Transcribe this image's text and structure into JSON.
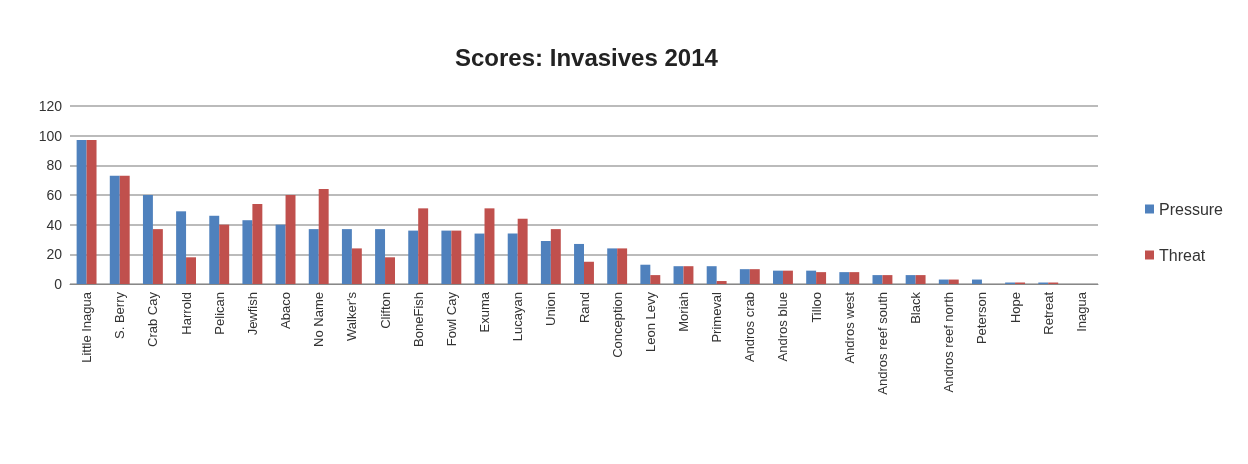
{
  "chart_data": {
    "type": "bar",
    "title": "Scores: Invasives 2014",
    "categories": [
      "Little Inagua",
      "S. Berry",
      "Crab Cay",
      "Harrold",
      "Pelican",
      "Jewfish",
      "Abaco",
      "No Name",
      "Walker's",
      "Clifton",
      "BoneFish",
      "Fowl Cay",
      "Exuma",
      "Lucayan",
      "Union",
      "Rand",
      "Conception",
      "Leon Levy",
      "Moriah",
      "Primeval",
      "Andros crab",
      "Andros blue",
      "Tilloo",
      "Andros west",
      "Andros reef south",
      "Black",
      "Andros reef north",
      "Peterson",
      "Hope",
      "Retreat",
      "Inagua"
    ],
    "series": [
      {
        "name": "Pressure",
        "color": "#4f81bd",
        "values": [
          97,
          73,
          60,
          49,
          46,
          43,
          40,
          37,
          37,
          37,
          36,
          36,
          34,
          34,
          29,
          27,
          24,
          13,
          12,
          12,
          10,
          9,
          9,
          8,
          6,
          6,
          3,
          3,
          1,
          1,
          0
        ]
      },
      {
        "name": "Threat",
        "color": "#c0504d",
        "values": [
          97,
          73,
          37,
          18,
          40,
          54,
          60,
          64,
          24,
          18,
          51,
          36,
          51,
          44,
          37,
          15,
          24,
          6,
          12,
          2,
          10,
          9,
          8,
          8,
          6,
          6,
          3,
          0,
          1,
          1,
          0
        ]
      }
    ],
    "ylim": [
      0,
      120
    ],
    "yticks": [
      0,
      20,
      40,
      60,
      80,
      100,
      120
    ],
    "grid": "y",
    "legend": "right"
  }
}
